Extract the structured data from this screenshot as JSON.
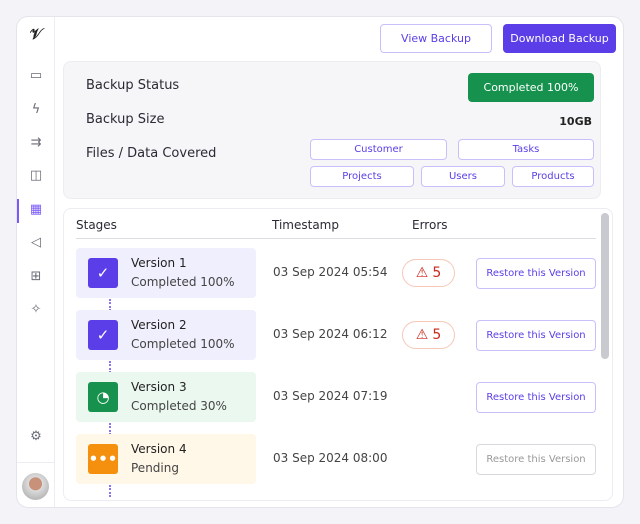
{
  "sidebar": {
    "logo": "logo",
    "icons": [
      "archive-icon",
      "lightning-icon",
      "arrows-icon",
      "layout-icon",
      "grid-icon",
      "megaphone-icon",
      "table-icon",
      "sparkles-icon",
      "gear-icon"
    ],
    "active": "grid-icon"
  },
  "header": {
    "view_backup": "View Backup",
    "download_backup": "Download Backup"
  },
  "status": {
    "status_label": "Backup Status",
    "status_value": "Completed 100%",
    "size_label": "Backup Size",
    "size_value": "10GB",
    "files_label": "Files / Data Covered",
    "chips": [
      "Customer",
      "Tasks",
      "Projects",
      "Users",
      "Products"
    ]
  },
  "table": {
    "headers": [
      "Stages",
      "Timestamp",
      "Errors"
    ],
    "rows": [
      {
        "name": "Version 1",
        "status": "Completed 100%",
        "timestamp": "03 Sep 2024 05:54",
        "errors": "5",
        "action": "Restore  this Version",
        "color": "#5b3ee8",
        "bg": "#f0effd"
      },
      {
        "name": "Version 2",
        "status": "Completed 100%",
        "timestamp": "03 Sep 2024 06:12",
        "errors": "5",
        "action": "Restore  this Version",
        "color": "#5b3ee8",
        "bg": "#f0effd"
      },
      {
        "name": "Version 3",
        "status": "Completed 30%",
        "timestamp": "03 Sep 2024 07:19",
        "action": "Restore  this Version",
        "color": "#16924e",
        "bg": "#ebf8ef"
      },
      {
        "name": "Version 4",
        "status": "Pending",
        "timestamp": "03 Sep 2024 08:00",
        "action": "Restore this Version",
        "color": "#f5900f",
        "bg": "#fff7e8"
      }
    ]
  }
}
